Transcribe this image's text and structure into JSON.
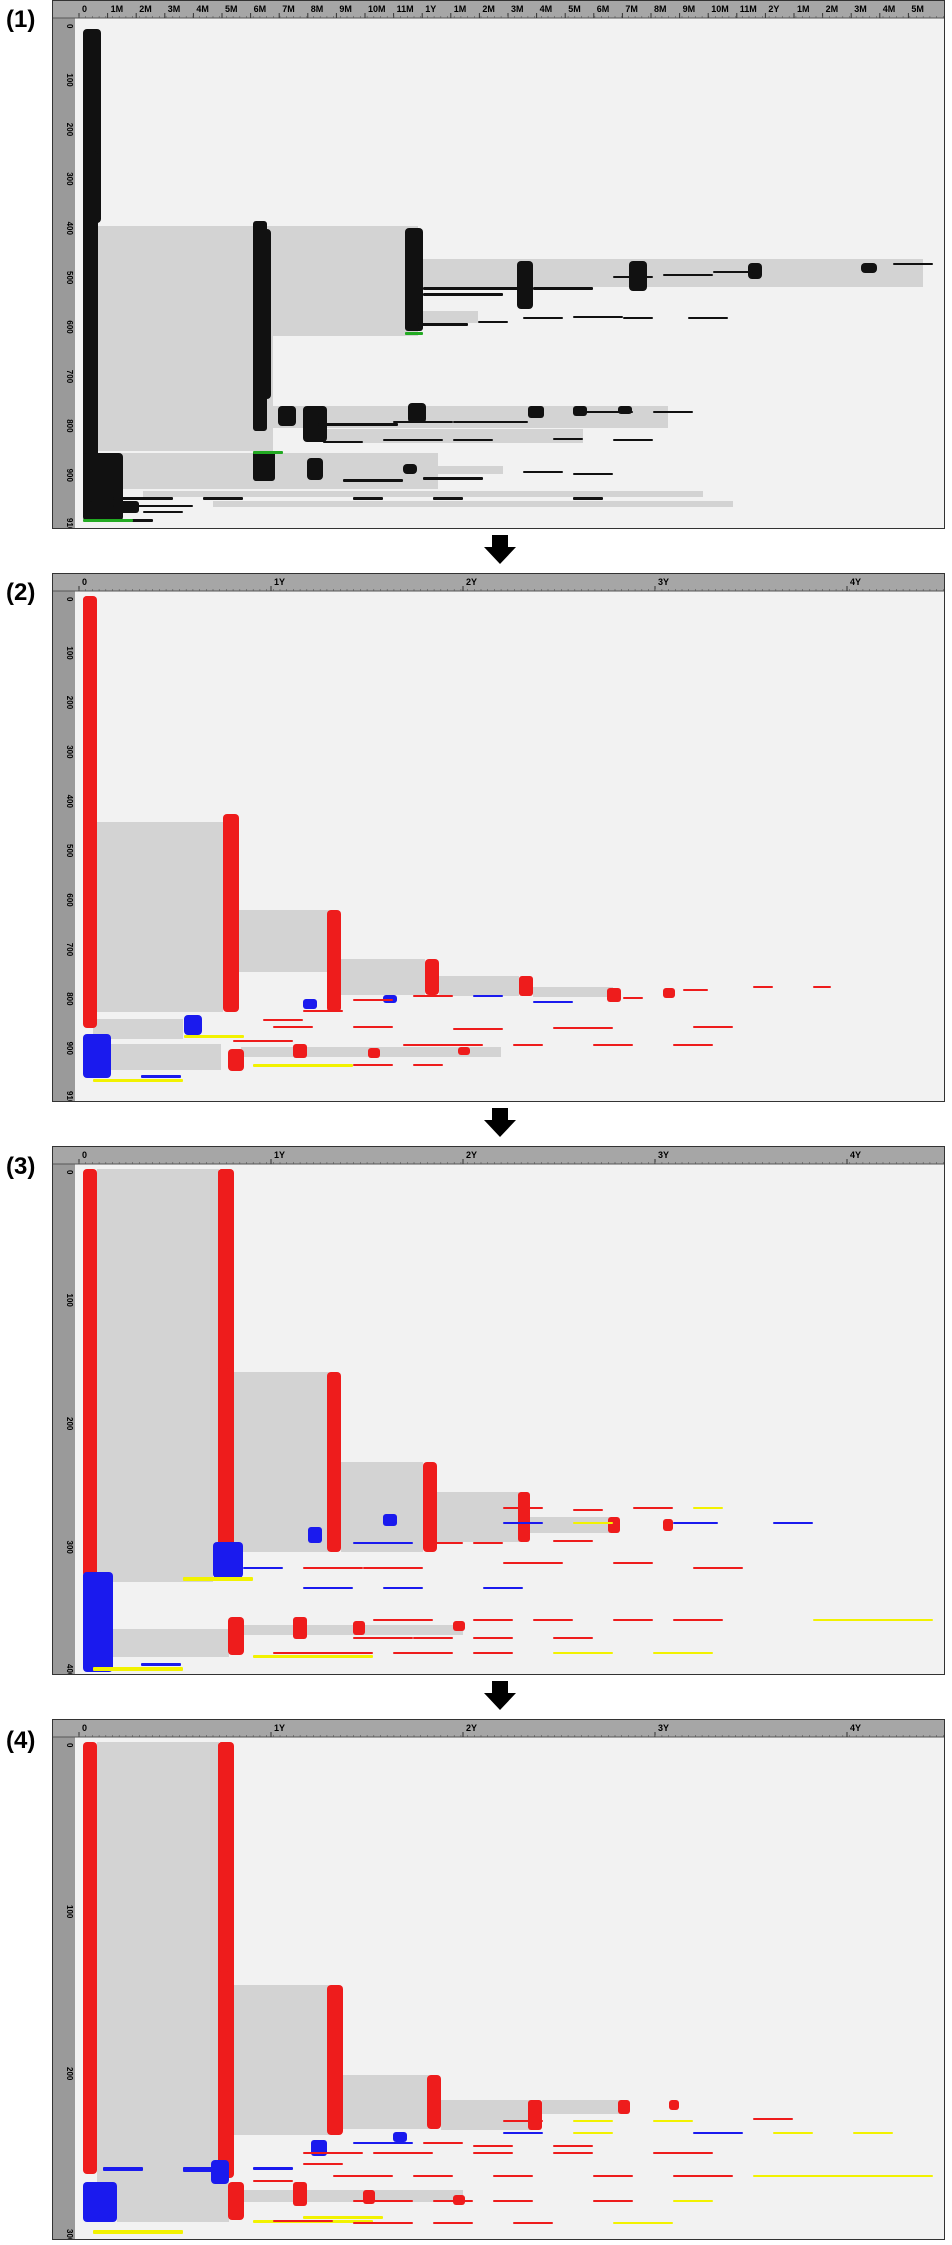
{
  "panels": [
    {
      "label": "(1)",
      "top_ticks": [
        "0",
        "1M",
        "2M",
        "3M",
        "4M",
        "5M",
        "6M",
        "7M",
        "8M",
        "9M",
        "10M",
        "11M",
        "1Y",
        "1M",
        "2M",
        "3M",
        "4M",
        "5M",
        "6M",
        "7M",
        "8M",
        "9M",
        "10M",
        "11M",
        "2Y",
        "1M",
        "2M",
        "3M",
        "4M",
        "5M"
      ],
      "side_ticks": [
        "0",
        "100",
        "200",
        "300",
        "400",
        "500",
        "600",
        "700",
        "800",
        "900",
        "910"
      ],
      "palette": "black"
    },
    {
      "label": "(2)",
      "top_ticks": [
        "0",
        "1Y",
        "2Y",
        "3Y",
        "4Y"
      ],
      "side_ticks": [
        "0",
        "100",
        "200",
        "300",
        "400",
        "500",
        "600",
        "700",
        "800",
        "900",
        "910"
      ],
      "palette": "color"
    },
    {
      "label": "(3)",
      "top_ticks": [
        "0",
        "1Y",
        "2Y",
        "3Y",
        "4Y"
      ],
      "side_ticks": [
        "0",
        "100",
        "200",
        "300",
        "400"
      ],
      "palette": "color"
    },
    {
      "label": "(4)",
      "top_ticks": [
        "0",
        "1Y",
        "2Y",
        "3Y",
        "4Y"
      ],
      "side_ticks": [
        "0",
        "100",
        "200",
        "300"
      ],
      "palette": "color"
    }
  ],
  "colors": {
    "ruler_bg": "#a6a6a6",
    "side_bg": "#9a9a9a",
    "plot_bg": "#f2f2f2",
    "span_fill": "#d3d3d3",
    "black": "#111111",
    "red": "#ee1c1c",
    "blue": "#1a1aee",
    "yellow": "#f2f200",
    "green": "#22aa22"
  },
  "arrow_icon": "down-arrow-icon"
}
